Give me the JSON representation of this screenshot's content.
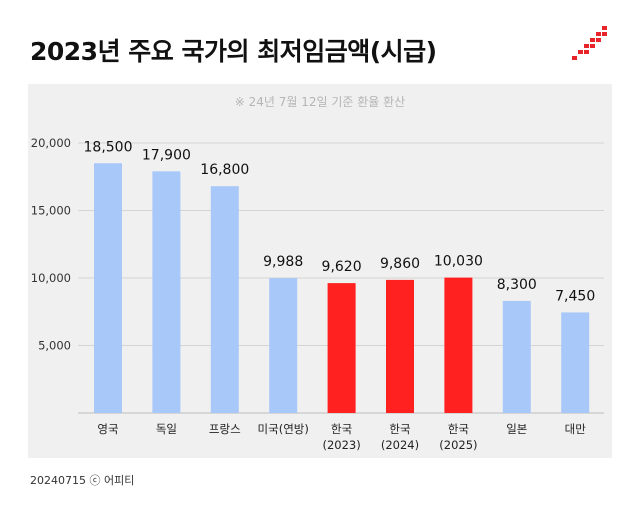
{
  "header": {
    "title": "2023년 주요 국가의 최저임금액(시급)"
  },
  "colors": {
    "background": "#ffffff",
    "panel": "#f0f0f0",
    "default_bar": "#a7c8f8",
    "highlight_bar": "#ff2020",
    "logo": "#e8242a"
  },
  "footer": {
    "text": "20240715 ⓒ 어피티"
  },
  "chart_data": {
    "type": "bar",
    "title": "2023년 주요 국가의 최저임금액(시급)",
    "subtitle": "※ 24년 7월 12일 기준 환율 환산",
    "xlabel": "",
    "ylabel": "",
    "ylim": [
      0,
      20000
    ],
    "yticks": [
      5000,
      10000,
      15000,
      20000
    ],
    "ytick_labels": [
      "5,000",
      "10,000",
      "15,000",
      "20,000"
    ],
    "grid": true,
    "legend": "none",
    "categories": [
      [
        "영국"
      ],
      [
        "독일"
      ],
      [
        "프랑스"
      ],
      [
        "미국(연방)"
      ],
      [
        "한국",
        "(2023)"
      ],
      [
        "한국",
        "(2024)"
      ],
      [
        "한국",
        "(2025)"
      ],
      [
        "일본"
      ],
      [
        "대만"
      ]
    ],
    "values": [
      18500,
      17900,
      16800,
      9988,
      9620,
      9860,
      10030,
      8300,
      7450
    ],
    "value_labels": [
      "18,500",
      "17,900",
      "16,800",
      "9,988",
      "9,620",
      "9,860",
      "10,030",
      "8,300",
      "7,450"
    ],
    "highlight": [
      false,
      false,
      false,
      false,
      true,
      true,
      true,
      false,
      false
    ]
  }
}
